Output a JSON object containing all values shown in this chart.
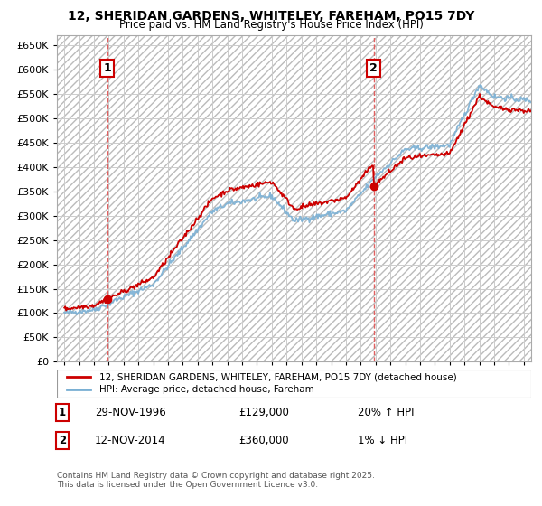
{
  "title": "12, SHERIDAN GARDENS, WHITELEY, FAREHAM, PO15 7DY",
  "subtitle": "Price paid vs. HM Land Registry's House Price Index (HPI)",
  "hpi_color": "#7ab0d4",
  "price_color": "#cc0000",
  "marker_color": "#cc0000",
  "bg_color": "#ffffff",
  "plot_bg_color": "#ffffff",
  "grid_color": "#cccccc",
  "annotation_line_color": "#e06060",
  "legend_label_price": "12, SHERIDAN GARDENS, WHITELEY, FAREHAM, PO15 7DY (detached house)",
  "legend_label_hpi": "HPI: Average price, detached house, Fareham",
  "footnote": "Contains HM Land Registry data © Crown copyright and database right 2025.\nThis data is licensed under the Open Government Licence v3.0.",
  "transaction1_label": "1",
  "transaction1_date": "29-NOV-1996",
  "transaction1_price": "£129,000",
  "transaction1_hpi": "20% ↑ HPI",
  "transaction1_x": 1996.91,
  "transaction1_y": 129000,
  "transaction2_label": "2",
  "transaction2_date": "12-NOV-2014",
  "transaction2_price": "£360,000",
  "transaction2_hpi": "1% ↓ HPI",
  "transaction2_x": 2014.87,
  "transaction2_y": 360000,
  "ylim": [
    0,
    670000
  ],
  "xlim": [
    1993.5,
    2025.5
  ],
  "ytick_step": 50000
}
